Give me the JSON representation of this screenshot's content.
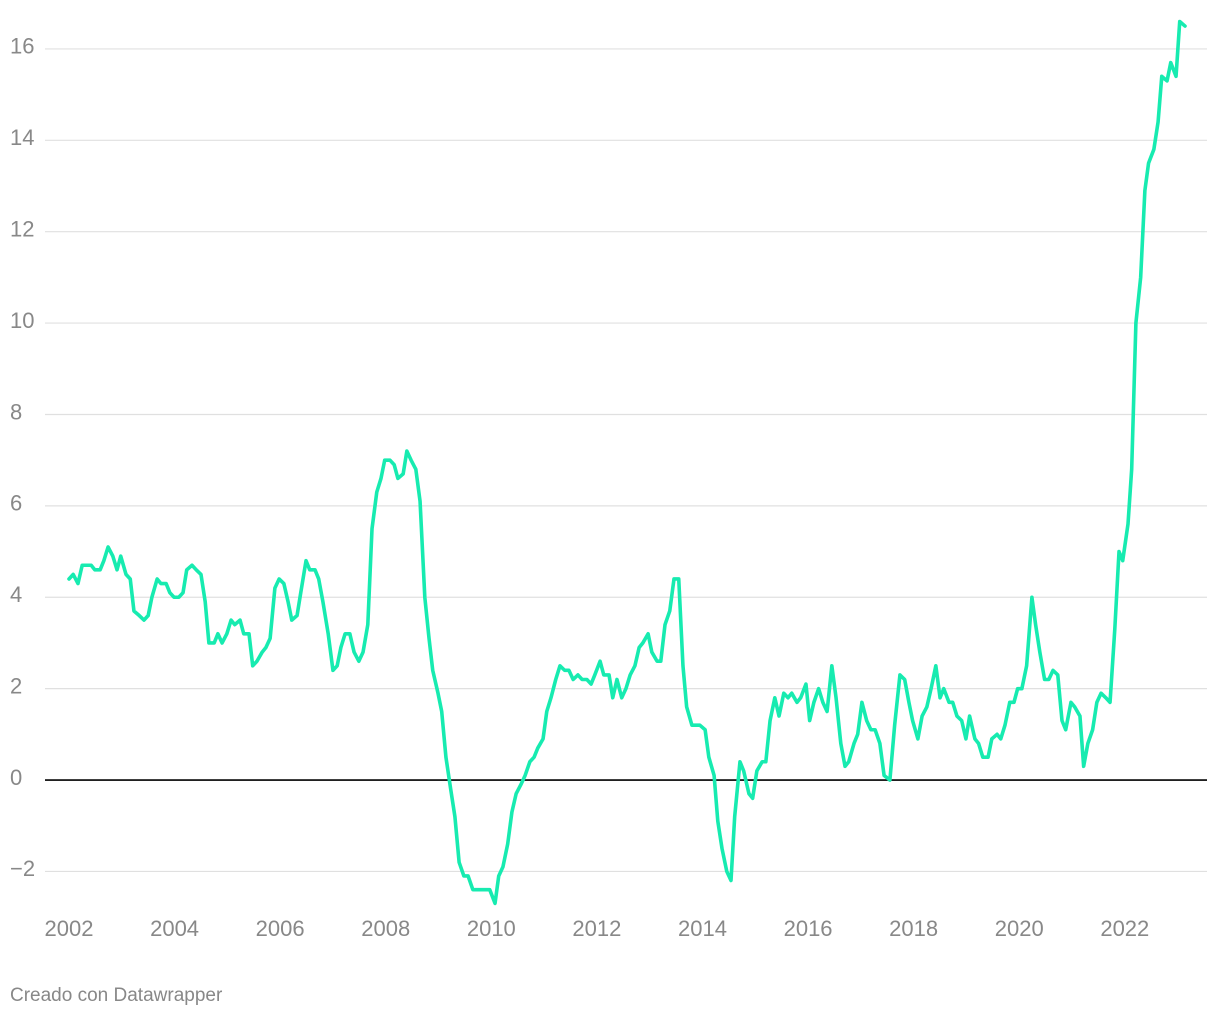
{
  "chart_data": {
    "type": "line",
    "x": [
      2002.0,
      2002.08,
      2002.17,
      2002.25,
      2002.42,
      2002.49,
      2002.59,
      2002.66,
      2002.74,
      2002.83,
      2002.91,
      2002.98,
      2003.08,
      2003.16,
      2003.23,
      2003.33,
      2003.42,
      2003.5,
      2003.57,
      2003.67,
      2003.74,
      2003.84,
      2003.91,
      2003.99,
      2004.08,
      2004.16,
      2004.23,
      2004.33,
      2004.41,
      2004.5,
      2004.58,
      2004.65,
      2004.75,
      2004.82,
      2004.9,
      2004.99,
      2005.07,
      2005.14,
      2005.24,
      2005.31,
      2005.41,
      2005.48,
      2005.56,
      2005.66,
      2005.73,
      2005.81,
      2005.9,
      2005.98,
      2006.07,
      2006.15,
      2006.22,
      2006.32,
      2006.39,
      2006.49,
      2006.56,
      2006.66,
      2006.73,
      2006.81,
      2006.91,
      2007.0,
      2007.08,
      2007.15,
      2007.23,
      2007.32,
      2007.4,
      2007.49,
      2007.57,
      2007.66,
      2007.74,
      2007.83,
      2007.91,
      2007.98,
      2008.08,
      2008.16,
      2008.23,
      2008.33,
      2008.4,
      2008.48,
      2008.57,
      2008.65,
      2008.74,
      2008.82,
      2008.89,
      2008.99,
      2009.06,
      2009.14,
      2009.23,
      2009.31,
      2009.39,
      2009.48,
      2009.56,
      2009.65,
      2009.73,
      2009.8,
      2009.9,
      2009.97,
      2010.07,
      2010.14,
      2010.22,
      2010.31,
      2010.39,
      2010.47,
      2010.56,
      2010.64,
      2010.73,
      2010.81,
      2010.88,
      2010.98,
      2011.05,
      2011.13,
      2011.22,
      2011.3,
      2011.39,
      2011.47,
      2011.55,
      2011.64,
      2011.72,
      2011.81,
      2011.89,
      2011.96,
      2012.06,
      2012.13,
      2012.23,
      2012.3,
      2012.38,
      2012.47,
      2012.55,
      2012.63,
      2012.72,
      2012.8,
      2012.87,
      2012.97,
      2013.04,
      2013.14,
      2013.21,
      2013.29,
      2013.38,
      2013.46,
      2013.55,
      2013.63,
      2013.7,
      2013.8,
      2013.88,
      2013.95,
      2014.05,
      2014.12,
      2014.22,
      2014.29,
      2014.37,
      2014.46,
      2014.54,
      2014.61,
      2014.71,
      2014.78,
      2014.88,
      2014.95,
      2015.03,
      2015.13,
      2015.2,
      2015.28,
      2015.37,
      2015.45,
      2015.54,
      2015.62,
      2015.69,
      2015.79,
      2015.86,
      2015.96,
      2016.03,
      2016.11,
      2016.2,
      2016.28,
      2016.36,
      2016.45,
      2016.53,
      2016.62,
      2016.7,
      2016.77,
      2016.87,
      2016.94,
      2017.02,
      2017.11,
      2017.19,
      2017.27,
      2017.36,
      2017.44,
      2017.55,
      2017.64,
      2017.74,
      2017.83,
      2017.91,
      2017.98,
      2018.08,
      2018.16,
      2018.25,
      2018.33,
      2018.42,
      2018.5,
      2018.57,
      2018.67,
      2018.74,
      2018.82,
      2018.91,
      2018.99,
      2019.06,
      2019.16,
      2019.23,
      2019.31,
      2019.41,
      2019.48,
      2019.58,
      2019.65,
      2019.73,
      2019.82,
      2019.9,
      2019.97,
      2020.05,
      2020.14,
      2020.24,
      2020.31,
      2020.39,
      2020.48,
      2020.56,
      2020.64,
      2020.73,
      2020.81,
      2020.88,
      2020.98,
      2021.05,
      2021.15,
      2021.22,
      2021.3,
      2021.39,
      2021.47,
      2021.55,
      2021.64,
      2021.72,
      2021.81,
      2021.89,
      2021.96,
      2022.06,
      2022.13,
      2022.21,
      2022.3,
      2022.38,
      2022.45,
      2022.55,
      2022.63,
      2022.7,
      2022.8,
      2022.87,
      2022.97,
      2023.04,
      2023.14
    ],
    "values": [
      4.4,
      4.5,
      4.3,
      4.7,
      4.7,
      4.6,
      4.6,
      4.8,
      5.1,
      4.9,
      4.6,
      4.9,
      4.5,
      4.4,
      3.7,
      3.6,
      3.5,
      3.6,
      4.0,
      4.4,
      4.3,
      4.3,
      4.1,
      4.0,
      4.0,
      4.1,
      4.6,
      4.7,
      4.6,
      4.5,
      3.9,
      3.0,
      3.0,
      3.2,
      3.0,
      3.2,
      3.5,
      3.4,
      3.5,
      3.2,
      3.2,
      2.5,
      2.6,
      2.8,
      2.9,
      3.1,
      4.2,
      4.4,
      4.3,
      3.9,
      3.5,
      3.6,
      4.1,
      4.8,
      4.6,
      4.6,
      4.4,
      3.9,
      3.2,
      2.4,
      2.5,
      2.9,
      3.2,
      3.2,
      2.8,
      2.6,
      2.8,
      3.4,
      5.5,
      6.3,
      6.6,
      7.0,
      7.0,
      6.9,
      6.6,
      6.7,
      7.2,
      7.0,
      6.8,
      6.1,
      4.0,
      3.1,
      2.4,
      1.9,
      1.5,
      0.5,
      -0.2,
      -0.8,
      -1.8,
      -2.1,
      -2.1,
      -2.4,
      -2.4,
      -2.4,
      -2.4,
      -2.4,
      -2.7,
      -2.1,
      -1.9,
      -1.4,
      -0.7,
      -0.3,
      -0.1,
      0.1,
      0.4,
      0.5,
      0.7,
      0.9,
      1.5,
      1.8,
      2.2,
      2.5,
      2.4,
      2.4,
      2.2,
      2.3,
      2.2,
      2.2,
      2.1,
      2.3,
      2.6,
      2.3,
      2.3,
      1.8,
      2.2,
      1.8,
      2.0,
      2.3,
      2.5,
      2.9,
      3.0,
      3.2,
      2.8,
      2.6,
      2.6,
      3.4,
      3.7,
      4.4,
      4.4,
      2.5,
      1.6,
      1.2,
      1.2,
      1.2,
      1.1,
      0.5,
      0.1,
      -0.9,
      -1.5,
      -2.0,
      -2.2,
      -0.8,
      0.4,
      0.2,
      -0.3,
      -0.4,
      0.2,
      0.4,
      0.4,
      1.3,
      1.8,
      1.4,
      1.9,
      1.8,
      1.9,
      1.7,
      1.8,
      2.1,
      1.3,
      1.7,
      2.0,
      1.7,
      1.5,
      2.5,
      1.8,
      0.8,
      0.3,
      0.4,
      0.8,
      1.0,
      1.7,
      1.3,
      1.1,
      1.1,
      0.8,
      0.1,
      0.0,
      1.2,
      2.3,
      2.2,
      1.7,
      1.3,
      0.9,
      1.4,
      1.6,
      2.0,
      2.5,
      1.8,
      2.0,
      1.7,
      1.7,
      1.4,
      1.3,
      0.9,
      1.4,
      0.9,
      0.8,
      0.5,
      0.5,
      0.9,
      1.0,
      0.9,
      1.2,
      1.7,
      1.7,
      2.0,
      2.0,
      2.5,
      4.0,
      3.4,
      2.8,
      2.2,
      2.2,
      2.4,
      2.3,
      1.3,
      1.1,
      1.7,
      1.6,
      1.4,
      0.3,
      0.8,
      1.1,
      1.7,
      1.9,
      1.8,
      1.7,
      3.3,
      5.0,
      4.8,
      5.6,
      6.8,
      10.0,
      11.0,
      12.9,
      13.5,
      13.8,
      14.4,
      15.4,
      15.3,
      15.7,
      15.4,
      16.6,
      16.5
    ],
    "color": "#17ebb0",
    "xlim": [
      2002,
      2023.14
    ],
    "xticks": [
      2002,
      2004,
      2006,
      2008,
      2010,
      2012,
      2014,
      2016,
      2018,
      2020,
      2022
    ],
    "ylim": [
      -2.7,
      16.6
    ],
    "yticks": [
      {
        "value": -2,
        "label": "−2"
      },
      0,
      2,
      4,
      6,
      8,
      10,
      12,
      14,
      16
    ],
    "grid": true,
    "source": "Creado con Datawrapper"
  }
}
